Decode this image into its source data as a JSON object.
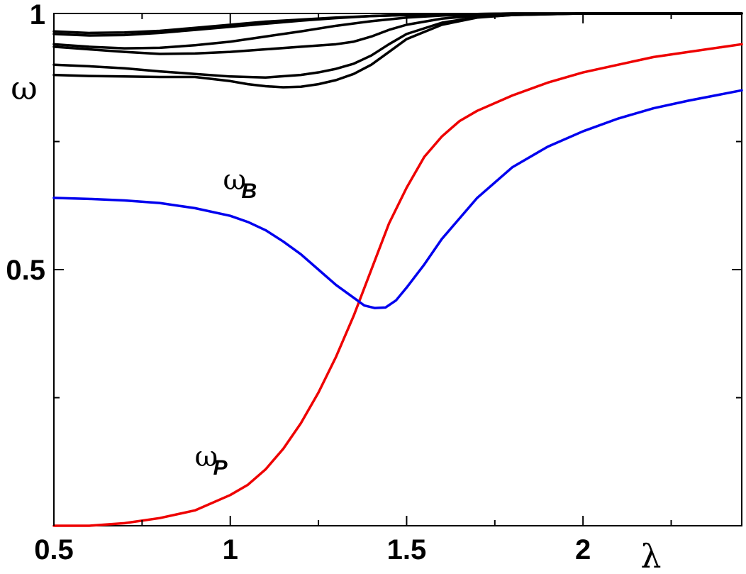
{
  "chart_data": {
    "type": "line",
    "xlabel": "λ",
    "ylabel": "ω",
    "xlim": [
      0.5,
      2.45
    ],
    "ylim": [
      0.0,
      1.0
    ],
    "x_ticks_major": [
      {
        "value": 0.5,
        "label": "0.5"
      },
      {
        "value": 1.0,
        "label": "1"
      },
      {
        "value": 1.5,
        "label": "1.5"
      },
      {
        "value": 2.0,
        "label": "2"
      }
    ],
    "x_ticks_minor": [
      0.75,
      1.25,
      1.75,
      2.25
    ],
    "y_ticks_major": [
      {
        "value": 0.5,
        "label": "0.5"
      },
      {
        "value": 1.0,
        "label": "1"
      }
    ],
    "y_ticks_minor": [
      0.25,
      0.75
    ],
    "grid": false,
    "annotations": [
      {
        "series": "B",
        "main": "ω",
        "sub": "B",
        "x": 1.1,
        "y": 0.64
      },
      {
        "series": "P",
        "main": "ω",
        "sub": "P",
        "x": 1.02,
        "y": 0.1
      }
    ],
    "series": [
      {
        "id": "omega_P",
        "color": "#ee0000",
        "x": [
          0.5,
          0.6,
          0.7,
          0.8,
          0.9,
          1.0,
          1.05,
          1.1,
          1.15,
          1.2,
          1.25,
          1.3,
          1.35,
          1.4,
          1.45,
          1.5,
          1.55,
          1.6,
          1.65,
          1.7,
          1.8,
          1.9,
          2.0,
          2.1,
          2.2,
          2.3,
          2.45
        ],
        "y": [
          0.0,
          0.0,
          0.005,
          0.015,
          0.03,
          0.06,
          0.08,
          0.11,
          0.15,
          0.2,
          0.26,
          0.33,
          0.41,
          0.5,
          0.59,
          0.66,
          0.72,
          0.76,
          0.79,
          0.81,
          0.84,
          0.865,
          0.885,
          0.9,
          0.915,
          0.925,
          0.94
        ]
      },
      {
        "id": "omega_B",
        "color": "#0000ee",
        "x": [
          0.5,
          0.6,
          0.7,
          0.8,
          0.9,
          1.0,
          1.05,
          1.1,
          1.15,
          1.2,
          1.25,
          1.3,
          1.35,
          1.38,
          1.41,
          1.44,
          1.47,
          1.5,
          1.55,
          1.6,
          1.7,
          1.8,
          1.9,
          2.0,
          2.1,
          2.2,
          2.3,
          2.45
        ],
        "y": [
          0.64,
          0.638,
          0.635,
          0.63,
          0.62,
          0.605,
          0.593,
          0.577,
          0.555,
          0.53,
          0.5,
          0.47,
          0.445,
          0.43,
          0.425,
          0.426,
          0.44,
          0.465,
          0.51,
          0.56,
          0.64,
          0.7,
          0.74,
          0.77,
          0.795,
          0.815,
          0.83,
          0.85
        ]
      },
      {
        "id": "black_1",
        "color": "#000000",
        "x": [
          0.5,
          0.6,
          0.7,
          0.8,
          0.9,
          1.0,
          1.1,
          1.2,
          1.3,
          1.4,
          1.5,
          1.6,
          1.7,
          1.8,
          2.0,
          2.2,
          2.45
        ],
        "y": [
          0.965,
          0.962,
          0.963,
          0.966,
          0.972,
          0.978,
          0.984,
          0.988,
          0.992,
          0.995,
          0.997,
          0.998,
          0.999,
          1.0,
          1.0,
          1.0,
          1.0
        ]
      },
      {
        "id": "black_2",
        "color": "#000000",
        "x": [
          0.5,
          0.6,
          0.7,
          0.8,
          0.9,
          1.0,
          1.1,
          1.2,
          1.3,
          1.4,
          1.5,
          1.6,
          1.7,
          1.8,
          2.0,
          2.2,
          2.45
        ],
        "y": [
          0.96,
          0.957,
          0.958,
          0.962,
          0.968,
          0.974,
          0.98,
          0.986,
          0.991,
          0.995,
          0.997,
          0.998,
          0.999,
          1.0,
          1.0,
          1.0,
          1.0
        ]
      },
      {
        "id": "black_3",
        "color": "#000000",
        "x": [
          0.5,
          0.6,
          0.7,
          0.8,
          0.9,
          1.0,
          1.1,
          1.2,
          1.3,
          1.4,
          1.5,
          1.6,
          1.7,
          1.8,
          2.0,
          2.2,
          2.45
        ],
        "y": [
          0.94,
          0.935,
          0.932,
          0.933,
          0.938,
          0.945,
          0.955,
          0.965,
          0.976,
          0.985,
          0.992,
          0.996,
          0.998,
          0.999,
          1.0,
          1.0,
          1.0
        ]
      },
      {
        "id": "black_4",
        "color": "#000000",
        "x": [
          0.5,
          0.6,
          0.7,
          0.8,
          0.9,
          1.0,
          1.1,
          1.2,
          1.3,
          1.35,
          1.4,
          1.45,
          1.5,
          1.6,
          1.7,
          1.8,
          2.0,
          2.2,
          2.45
        ],
        "y": [
          0.935,
          0.93,
          0.925,
          0.921,
          0.922,
          0.925,
          0.93,
          0.935,
          0.94,
          0.945,
          0.955,
          0.968,
          0.978,
          0.99,
          0.996,
          0.998,
          1.0,
          1.0,
          1.0
        ]
      },
      {
        "id": "black_5",
        "color": "#000000",
        "x": [
          0.5,
          0.6,
          0.7,
          0.8,
          0.9,
          1.0,
          1.1,
          1.2,
          1.25,
          1.3,
          1.35,
          1.4,
          1.45,
          1.5,
          1.6,
          1.7,
          1.8,
          2.0,
          2.2,
          2.45
        ],
        "y": [
          0.9,
          0.897,
          0.893,
          0.887,
          0.882,
          0.877,
          0.875,
          0.88,
          0.885,
          0.892,
          0.902,
          0.918,
          0.94,
          0.96,
          0.982,
          0.993,
          0.997,
          1.0,
          1.0,
          1.0
        ]
      },
      {
        "id": "black_6",
        "color": "#000000",
        "x": [
          0.5,
          0.6,
          0.7,
          0.8,
          0.9,
          1.0,
          1.05,
          1.1,
          1.15,
          1.2,
          1.25,
          1.3,
          1.35,
          1.4,
          1.45,
          1.5,
          1.6,
          1.7,
          1.8,
          2.0,
          2.2,
          2.45
        ],
        "y": [
          0.88,
          0.878,
          0.877,
          0.876,
          0.876,
          0.868,
          0.862,
          0.858,
          0.856,
          0.857,
          0.862,
          0.87,
          0.882,
          0.9,
          0.925,
          0.95,
          0.978,
          0.992,
          0.997,
          1.0,
          1.0,
          1.0
        ]
      }
    ]
  }
}
